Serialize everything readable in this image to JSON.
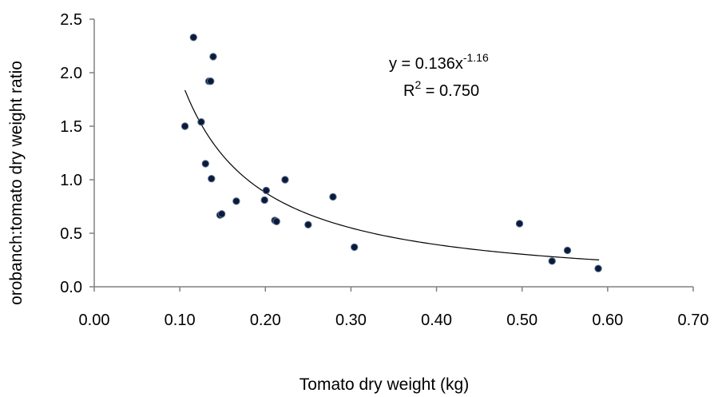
{
  "chart_data": {
    "type": "scatter",
    "xlabel": "Tomato dry weight (kg)",
    "ylabel": "orobanch:tomato dry weight  ratio",
    "xlim": [
      0.0,
      0.7
    ],
    "ylim": [
      0.0,
      2.5
    ],
    "x_ticks": [
      "0.00",
      "0.10",
      "0.20",
      "0.30",
      "0.40",
      "0.50",
      "0.60",
      "0.70"
    ],
    "y_ticks": [
      "0.0",
      "0.5",
      "1.0",
      "1.5",
      "2.0",
      "2.5"
    ],
    "grid": false,
    "point_color": "#0a1a3a",
    "points": [
      {
        "x": 0.106,
        "y": 1.5
      },
      {
        "x": 0.116,
        "y": 2.33
      },
      {
        "x": 0.125,
        "y": 1.54
      },
      {
        "x": 0.13,
        "y": 1.15
      },
      {
        "x": 0.134,
        "y": 1.92
      },
      {
        "x": 0.136,
        "y": 1.92
      },
      {
        "x": 0.137,
        "y": 1.01
      },
      {
        "x": 0.139,
        "y": 2.15
      },
      {
        "x": 0.147,
        "y": 0.67
      },
      {
        "x": 0.149,
        "y": 0.68
      },
      {
        "x": 0.166,
        "y": 0.8
      },
      {
        "x": 0.199,
        "y": 0.81
      },
      {
        "x": 0.201,
        "y": 0.9
      },
      {
        "x": 0.211,
        "y": 0.62
      },
      {
        "x": 0.213,
        "y": 0.61
      },
      {
        "x": 0.223,
        "y": 1.0
      },
      {
        "x": 0.25,
        "y": 0.58
      },
      {
        "x": 0.279,
        "y": 0.84
      },
      {
        "x": 0.304,
        "y": 0.37
      },
      {
        "x": 0.497,
        "y": 0.59
      },
      {
        "x": 0.535,
        "y": 0.24
      },
      {
        "x": 0.553,
        "y": 0.34
      },
      {
        "x": 0.589,
        "y": 0.17
      }
    ],
    "fit": {
      "type": "power",
      "coefficient": 0.136,
      "exponent": -1.16,
      "x_range": [
        0.106,
        0.59
      ],
      "equation_prefix": "y = 0.136x",
      "equation_exponent": "-1.16",
      "r2_prefix": "R",
      "r2_superscript": "2",
      "r2_suffix": " = 0.750"
    }
  }
}
